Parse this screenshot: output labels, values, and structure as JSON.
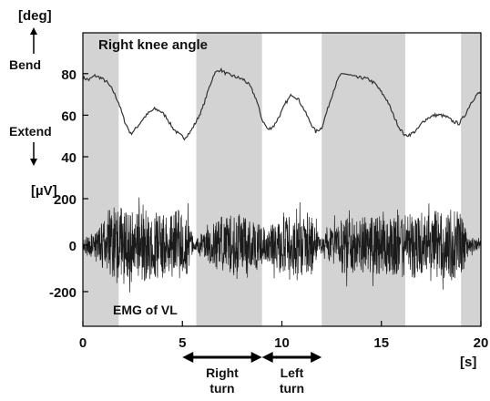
{
  "chart_data": [
    {
      "type": "line",
      "title": "Right knee angle",
      "ylabel": "[deg]",
      "xlabel": "[s]",
      "ylim": [
        40,
        90
      ],
      "yticks": [
        "80",
        "60",
        "40"
      ],
      "ytick_values": [
        80,
        60,
        40
      ],
      "y_direction_labels": {
        "up": "Bend",
        "down": "Extend"
      },
      "series": [
        {
          "x": [
            0,
            0.3,
            0.6,
            0.9,
            1.2,
            1.5,
            1.8,
            2.1,
            2.4,
            2.7,
            3.0,
            3.3,
            3.6,
            3.9,
            4.2,
            4.5,
            4.8,
            5.1,
            5.4,
            5.7,
            6.0,
            6.3,
            6.6,
            6.9,
            7.2,
            7.5,
            7.8,
            8.1,
            8.4,
            8.7,
            9.0,
            9.3,
            9.6,
            9.9,
            10.2,
            10.5,
            10.8,
            11.1,
            11.4,
            11.7,
            12.0,
            12.3,
            12.6,
            12.9,
            13.2,
            13.5,
            13.8,
            14.1,
            14.4,
            14.7,
            15.0,
            15.3,
            15.6,
            15.9,
            16.2,
            16.5,
            16.8,
            17.1,
            17.4,
            17.7,
            18.0,
            18.3,
            18.6,
            18.9,
            19.2,
            19.5,
            19.8,
            20.0
          ],
          "values": [
            78,
            77,
            79,
            78,
            76,
            72,
            66,
            57,
            51,
            54,
            58,
            61,
            63,
            62,
            59,
            54,
            51,
            49,
            52,
            57,
            63,
            72,
            80,
            82,
            80,
            79,
            78,
            77,
            74,
            68,
            58,
            53,
            55,
            60,
            66,
            70,
            68,
            63,
            57,
            52,
            54,
            63,
            72,
            79,
            80,
            79,
            78,
            78,
            77,
            75,
            71,
            67,
            60,
            54,
            50,
            51,
            53,
            57,
            59,
            60,
            60,
            59,
            57,
            56,
            60,
            66,
            70,
            71
          ]
        }
      ]
    },
    {
      "type": "line",
      "title": "EMG of VL",
      "ylabel": "[µV]",
      "xlabel": "[s]",
      "xlim": [
        0,
        20
      ],
      "ylim": [
        -330,
        330
      ],
      "yticks": [
        "200",
        "0",
        "-200"
      ],
      "ytick_values": [
        200,
        0,
        -200
      ],
      "xticks": [
        "0",
        "5",
        "10",
        "15",
        "20"
      ],
      "xtick_values": [
        0,
        5,
        10,
        15,
        20
      ],
      "shaded_intervals": [
        [
          0,
          1.8
        ],
        [
          5.7,
          9.0
        ],
        [
          12.0,
          16.2
        ],
        [
          19.0,
          20.0
        ]
      ],
      "envelope": {
        "x": [
          0,
          0.8,
          1.6,
          2.4,
          3.2,
          4.0,
          4.8,
          5.3,
          5.6,
          6.0,
          6.8,
          7.6,
          8.4,
          8.8,
          9.2,
          10.0,
          10.8,
          11.6,
          11.9,
          12.2,
          13.0,
          14.0,
          15.0,
          16.0,
          16.8,
          17.6,
          18.4,
          19.0,
          19.4,
          20.0
        ],
        "amplitude": [
          25,
          90,
          170,
          170,
          160,
          150,
          150,
          120,
          20,
          60,
          130,
          140,
          130,
          110,
          70,
          140,
          160,
          130,
          30,
          60,
          120,
          120,
          130,
          140,
          140,
          150,
          160,
          150,
          40,
          20
        ]
      }
    }
  ],
  "annotations": {
    "right_turn": {
      "label": "Right turn",
      "x_start": 5.0,
      "x_end": 9.0
    },
    "left_turn": {
      "label": "Left turn",
      "x_start": 9.0,
      "x_end": 12.0
    }
  },
  "colors": {
    "shade": "#d3d3d3",
    "trace": "#1a1a1a",
    "knee_trace": "#333333"
  }
}
